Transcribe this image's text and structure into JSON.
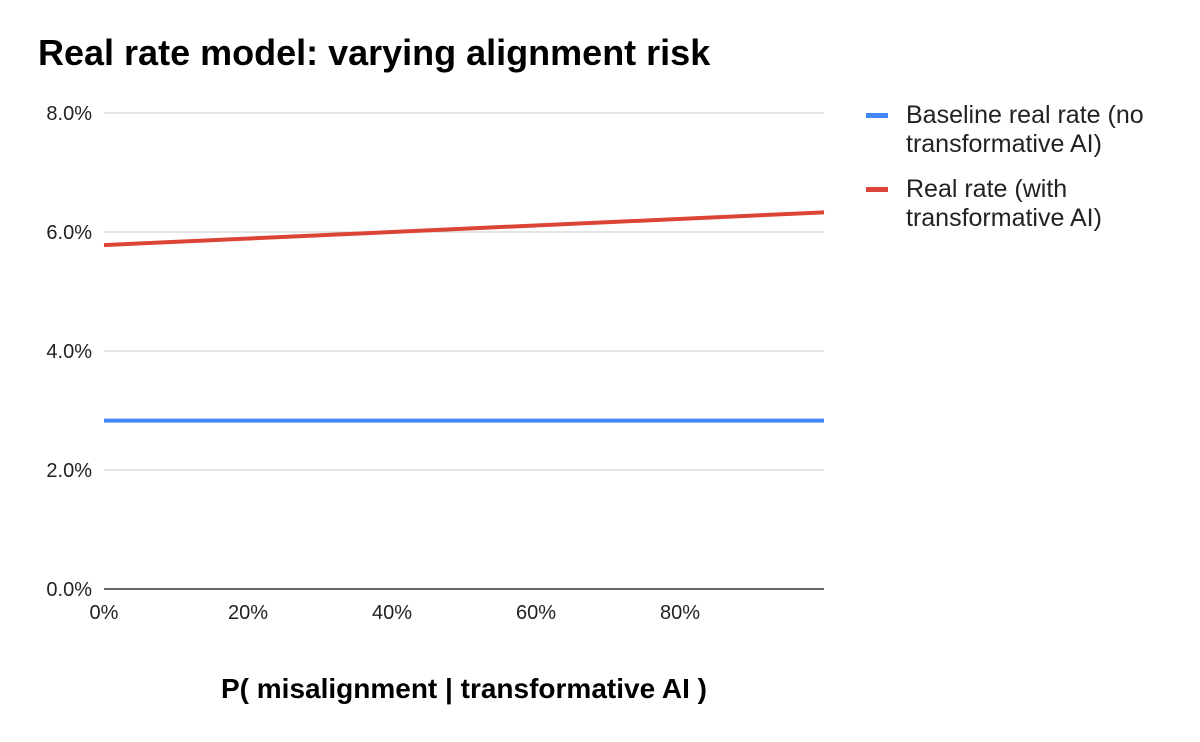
{
  "chart_data": {
    "type": "line",
    "title": "Real rate model: varying alignment risk",
    "xlabel": "P( misalignment | transformative AI )",
    "ylabel": "",
    "x_ticks": [
      0,
      0.2,
      0.4,
      0.6,
      0.8
    ],
    "x_tick_labels": [
      "0%",
      "20%",
      "40%",
      "60%",
      "80%"
    ],
    "xlim": [
      0,
      1.0
    ],
    "y_ticks": [
      0,
      0.02,
      0.04,
      0.06,
      0.08
    ],
    "y_tick_labels": [
      "0.0%",
      "2.0%",
      "4.0%",
      "6.0%",
      "8.0%"
    ],
    "ylim": [
      0,
      0.08
    ],
    "grid": true,
    "legend_position": "right",
    "x": [
      0,
      1.0
    ],
    "series": [
      {
        "name": "Baseline real rate (no transformative AI)",
        "color": "#4285f4",
        "values": [
          0.0283,
          0.0283
        ]
      },
      {
        "name": "Real rate (with transformative AI)",
        "color": "#db4437",
        "values": [
          0.0578,
          0.0633
        ]
      }
    ]
  }
}
